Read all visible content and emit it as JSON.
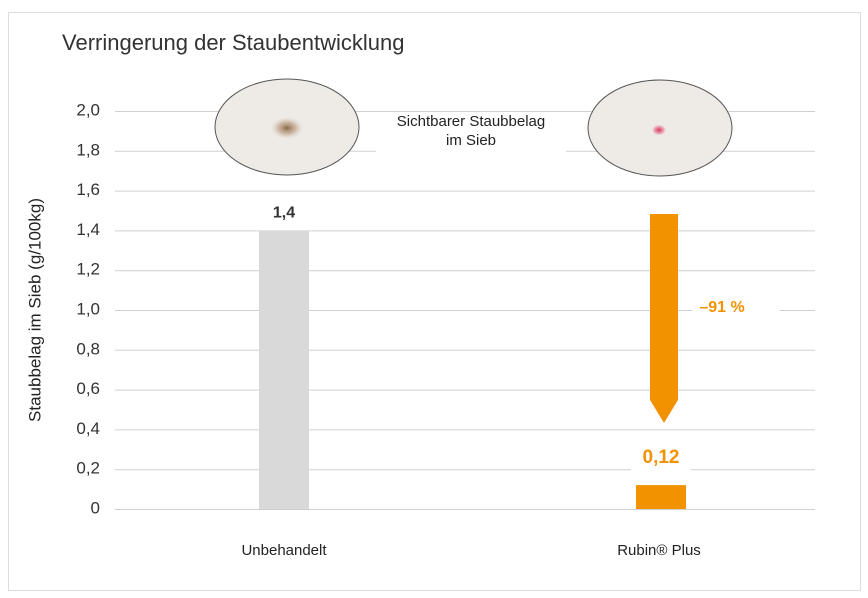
{
  "chart_data": {
    "type": "bar",
    "title": "Verringerung der Staubentwicklung",
    "ylabel": "Staubbelag im Sieb (g/100kg)",
    "categories": [
      "Unbehandelt",
      "Rubin® Plus"
    ],
    "values": [
      1.4,
      0.12
    ],
    "value_labels": [
      "1,4",
      "0,12"
    ],
    "colors": [
      "#d9d9d9",
      "#f39200"
    ],
    "ylim": [
      0,
      2.0
    ],
    "yticks": [
      0,
      {
        "value": 0.2,
        "label": "0,2"
      },
      {
        "value": 0.4,
        "label": "0,4"
      },
      {
        "value": 0.6,
        "label": "0,6"
      },
      {
        "value": 0.8,
        "label": "0,8"
      },
      {
        "value": 1.0,
        "label": "1,0"
      },
      {
        "value": 1.2,
        "label": "1,2"
      },
      {
        "value": 1.4,
        "label": "1,4"
      },
      {
        "value": 1.6,
        "label": "1,6"
      },
      {
        "value": 1.8,
        "label": "1,8"
      },
      {
        "value": 2.0,
        "label": "2,0"
      }
    ],
    "grid": true,
    "annotations": {
      "image_caption": [
        "Sichtbarer Staubbelag",
        "im Sieb"
      ],
      "reduction": "–91 %"
    }
  }
}
